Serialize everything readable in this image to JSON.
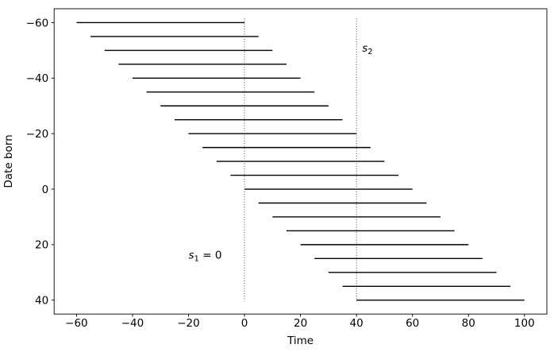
{
  "chart_data": {
    "type": "line",
    "subtype": "lifespan-interval-segments",
    "title": "",
    "xlabel": "Time",
    "ylabel": "Date born",
    "x_ticks": [
      -60,
      -40,
      -20,
      0,
      20,
      40,
      60,
      80,
      100
    ],
    "y_ticks": [
      -60,
      -40,
      -20,
      0,
      20,
      40
    ],
    "xlim": [
      -68,
      108
    ],
    "ylim": [
      -65,
      45
    ],
    "y_axis_inverted": true,
    "grid": false,
    "legend": false,
    "lifespan_length": 60,
    "segments": [
      {
        "born": -60,
        "start": -60,
        "end": 0
      },
      {
        "born": -55,
        "start": -55,
        "end": 5
      },
      {
        "born": -50,
        "start": -50,
        "end": 10
      },
      {
        "born": -45,
        "start": -45,
        "end": 15
      },
      {
        "born": -40,
        "start": -40,
        "end": 20
      },
      {
        "born": -35,
        "start": -35,
        "end": 25
      },
      {
        "born": -30,
        "start": -30,
        "end": 30
      },
      {
        "born": -25,
        "start": -25,
        "end": 35
      },
      {
        "born": -20,
        "start": -20,
        "end": 40
      },
      {
        "born": -15,
        "start": -15,
        "end": 45
      },
      {
        "born": -10,
        "start": -10,
        "end": 50
      },
      {
        "born": -5,
        "start": -5,
        "end": 55
      },
      {
        "born": 0,
        "start": 0,
        "end": 60
      },
      {
        "born": 5,
        "start": 5,
        "end": 65
      },
      {
        "born": 10,
        "start": 10,
        "end": 70
      },
      {
        "born": 15,
        "start": 15,
        "end": 75
      },
      {
        "born": 20,
        "start": 20,
        "end": 80
      },
      {
        "born": 25,
        "start": 25,
        "end": 85
      },
      {
        "born": 30,
        "start": 30,
        "end": 90
      },
      {
        "born": 35,
        "start": 35,
        "end": 95
      },
      {
        "born": 40,
        "start": 40,
        "end": 100
      }
    ],
    "vlines": [
      {
        "name": "s1-vline",
        "x": 0,
        "y_from": -61.5,
        "y_to": 40.3,
        "style": "dotted",
        "label": "s1 = 0",
        "label_base": "s",
        "label_sub": "1",
        "label_suffix": " = 0",
        "label_x": -20,
        "label_y": 25
      },
      {
        "name": "s2-vline",
        "x": 40,
        "y_from": -61.5,
        "y_to": 40.3,
        "style": "dotted",
        "label": "s2",
        "label_base": "s",
        "label_sub": "2",
        "label_suffix": "",
        "label_x": 42,
        "label_y": -49.5
      }
    ],
    "colors": {
      "segment": "#000000",
      "vline": "#333333",
      "spine": "#000000",
      "text": "#000000",
      "background": "#ffffff"
    }
  }
}
